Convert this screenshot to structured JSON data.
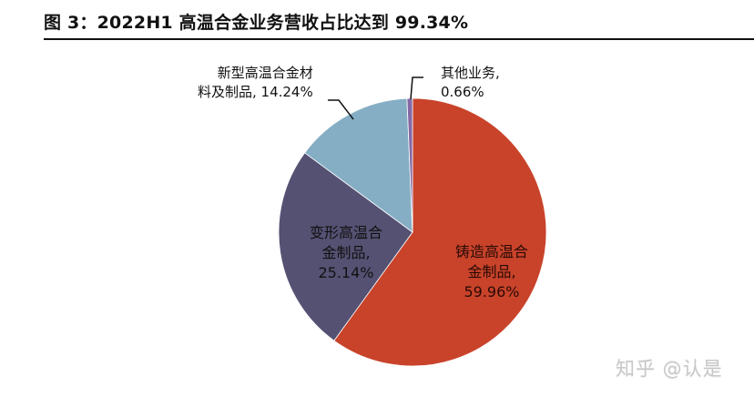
{
  "title": "图 3：2022H1 高温合金业务营收占比达到 99.34%",
  "watermark": "知乎 @认是",
  "colors": {
    "cast": "#c8432a",
    "deformed": "#555173",
    "new_material": "#85aec4",
    "other": "#8468a4"
  },
  "labels": {
    "cast": {
      "line1": "铸造高温合",
      "line2": "金制品,",
      "line3": "59.96%"
    },
    "deformed": {
      "line1": "变形高温合",
      "line2": "金制品,",
      "line3": "25.14%"
    },
    "new_material": {
      "line1": "新型高温合金材",
      "line2": "料及制品, 14.24%"
    },
    "other": {
      "line1": "其他业务,",
      "line2": "0.66%"
    }
  },
  "chart_data": {
    "type": "pie",
    "title": "图 3：2022H1 高温合金业务营收占比达到 99.34%",
    "categories": [
      "铸造高温合金制品",
      "变形高温合金制品",
      "新型高温合金材料及制品",
      "其他业务"
    ],
    "values": [
      59.96,
      25.14,
      14.24,
      0.66
    ],
    "unit": "%",
    "start_angle": "12 o'clock, clockwise",
    "colors": [
      "#c8432a",
      "#555173",
      "#85aec4",
      "#8468a4"
    ],
    "legend": "none (data labels on/near slices)"
  }
}
